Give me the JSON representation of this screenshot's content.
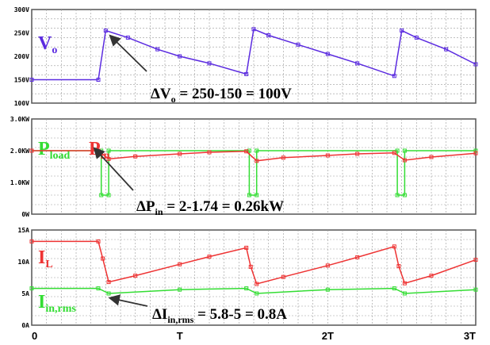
{
  "chart_data": [
    {
      "type": "line",
      "panel": "top",
      "y_unit_label_note": "tick labels with V unit",
      "yticks": [
        "300V",
        "250V",
        "200V",
        "150V",
        "100V"
      ],
      "ylim": [
        100,
        300
      ],
      "xlim": [
        0,
        3
      ],
      "series": [
        {
          "label_main": "V",
          "label_sub": "o",
          "color": "#5b2be0",
          "x": [
            0,
            0.45,
            0.5,
            0.65,
            0.85,
            1.0,
            1.2,
            1.45,
            1.5,
            1.6,
            1.8,
            2.0,
            2.2,
            2.45,
            2.5,
            2.6,
            2.8,
            3.0
          ],
          "y": [
            150,
            150,
            255,
            240,
            215,
            200,
            185,
            162,
            258,
            245,
            225,
            205,
            185,
            158,
            255,
            240,
            215,
            183
          ]
        }
      ],
      "annotation": {
        "main": "ΔV",
        "sub": "o",
        "rest": "= 250-150 = 100V"
      }
    },
    {
      "type": "line",
      "panel": "middle",
      "yticks": [
        "3.0KW",
        "2.0KW",
        "1.0KW",
        "0W"
      ],
      "ylim": [
        0,
        3
      ],
      "xlim": [
        0,
        3
      ],
      "series": [
        {
          "label_main": "P",
          "label_sub": "load",
          "color": "#33dd33",
          "x": [
            0,
            0.47,
            0.47,
            0.52,
            0.52,
            1.47,
            1.47,
            1.52,
            1.52,
            2.47,
            2.47,
            2.52,
            2.52,
            3.0
          ],
          "y": [
            2.0,
            2.0,
            0.6,
            0.6,
            2.0,
            2.0,
            0.6,
            0.6,
            2.0,
            2.0,
            0.6,
            0.6,
            2.0,
            2.0
          ]
        },
        {
          "label_main": "P",
          "label_sub": "in",
          "color": "#ee3333",
          "x": [
            0,
            0.45,
            0.52,
            0.7,
            1.0,
            1.2,
            1.45,
            1.52,
            1.7,
            2.0,
            2.2,
            2.45,
            2.52,
            2.7,
            3.0
          ],
          "y": [
            2.0,
            2.0,
            1.74,
            1.82,
            1.9,
            1.95,
            1.98,
            1.68,
            1.78,
            1.85,
            1.9,
            1.93,
            1.7,
            1.8,
            1.92
          ]
        }
      ],
      "annotation": {
        "main": "ΔP",
        "sub": "in",
        "rest": "= 2-1.74 = 0.26kW"
      }
    },
    {
      "type": "line",
      "panel": "bottom",
      "yticks": [
        "15A",
        "10A",
        "5A",
        "0A"
      ],
      "ylim": [
        0,
        15
      ],
      "xlim": [
        0,
        3
      ],
      "series": [
        {
          "label_main": "I",
          "label_sub": "L",
          "color": "#ee3333",
          "x": [
            0,
            0.45,
            0.48,
            0.52,
            0.7,
            1.0,
            1.2,
            1.45,
            1.48,
            1.52,
            1.7,
            2.0,
            2.2,
            2.45,
            2.48,
            2.52,
            2.7,
            3.0
          ],
          "y": [
            13.2,
            13.2,
            10.5,
            6.8,
            7.8,
            9.6,
            10.8,
            12.2,
            9.2,
            6.5,
            7.6,
            9.4,
            10.7,
            12.4,
            9.3,
            6.6,
            7.8,
            10.3
          ]
        },
        {
          "label_main": "I",
          "label_sub": "in,rms",
          "color": "#33dd33",
          "x": [
            0,
            0.45,
            0.52,
            1.0,
            1.45,
            1.52,
            2.0,
            2.45,
            2.52,
            3.0
          ],
          "y": [
            5.8,
            5.8,
            5.0,
            5.6,
            5.8,
            5.0,
            5.6,
            5.8,
            5.0,
            5.6
          ]
        }
      ],
      "annotation": {
        "main": "ΔI",
        "sub": "in,rms",
        "rest": "= 5.8-5 = 0.8A"
      }
    }
  ],
  "xaxis": {
    "ticks": [
      {
        "value": 0,
        "label": "0"
      },
      {
        "value": 1,
        "label": "T"
      },
      {
        "value": 2,
        "label": "2T"
      },
      {
        "value": 3,
        "label": "3T"
      }
    ]
  },
  "style": {
    "grid": true,
    "grid_color": "#9a9a9a",
    "frame_color": "#555555"
  }
}
